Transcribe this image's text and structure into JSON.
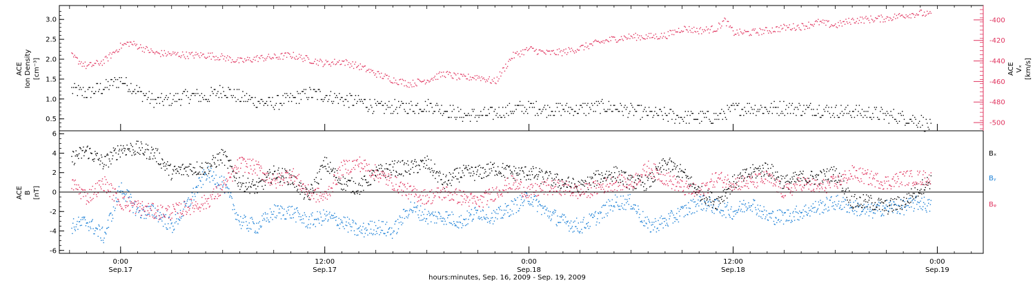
{
  "colors": {
    "black": "#000000",
    "blue": "#1a7fd6",
    "red": "#e0335e"
  },
  "chart_data": [
    {
      "type": "scatter",
      "ylabel_lines": [
        "ACE",
        "Ion Density"
      ],
      "ylabel_unit": "[cm⁻³]",
      "ylim": [
        0.2,
        3.35
      ],
      "yticks": [
        0.5,
        1.0,
        1.5,
        2.0,
        2.5,
        3.0
      ],
      "ytick_labels": [
        "0.5",
        "1.0",
        "1.5",
        "2.0",
        "2.5",
        "3.0"
      ],
      "y2label_lines": [
        "ACE",
        "Vₓ"
      ],
      "y2label_unit": "[km/s]",
      "y2lim": [
        -508,
        -386
      ],
      "y2ticks": [
        -500,
        -480,
        -460,
        -440,
        -420,
        -400
      ],
      "y2tick_labels": [
        "-500",
        "-480",
        "-460",
        "-440",
        "-420",
        "-400"
      ],
      "series": [
        {
          "color": "black",
          "axis": "left",
          "x_hours": [
            -2.9,
            -2,
            -1,
            0,
            1,
            2,
            3,
            4,
            5,
            6,
            7,
            8,
            9,
            10,
            11,
            12,
            13,
            14,
            15,
            16,
            17,
            18,
            19,
            20,
            21,
            22,
            23,
            24,
            25,
            26,
            27,
            28,
            29,
            30,
            31,
            32,
            33,
            34,
            35,
            36,
            37,
            38,
            39,
            40,
            41,
            42,
            43,
            44,
            45,
            46,
            47,
            47.6
          ],
          "values": [
            1.25,
            1.15,
            1.3,
            1.5,
            1.2,
            0.95,
            1.0,
            1.1,
            1.05,
            1.25,
            1.05,
            0.95,
            0.9,
            1.0,
            1.15,
            1.1,
            1.0,
            0.95,
            0.8,
            0.8,
            0.8,
            0.85,
            0.75,
            0.6,
            0.6,
            0.65,
            0.75,
            0.8,
            0.75,
            0.75,
            0.75,
            0.8,
            0.8,
            0.7,
            0.65,
            0.6,
            0.55,
            0.55,
            0.55,
            0.75,
            0.8,
            0.75,
            0.8,
            0.75,
            0.75,
            0.7,
            0.7,
            0.65,
            0.6,
            0.55,
            0.45,
            0.3
          ]
        },
        {
          "color": "red",
          "axis": "right",
          "x_hours": [
            -2.9,
            -2,
            -1,
            0,
            0.5,
            1,
            2,
            3,
            4,
            5,
            6,
            7,
            8,
            9,
            10,
            11,
            12,
            13,
            14,
            15,
            16,
            17,
            18,
            19,
            20,
            21,
            22,
            23,
            24,
            25,
            26,
            27,
            28,
            29,
            30,
            31,
            32,
            33,
            34,
            35,
            35.5,
            36,
            37,
            38,
            39,
            40,
            41,
            42,
            43,
            44,
            45,
            46,
            47,
            47.6
          ],
          "values": [
            -435,
            -445,
            -440,
            -425,
            -422,
            -425,
            -432,
            -433,
            -434,
            -434,
            -436,
            -440,
            -437,
            -436,
            -434,
            -438,
            -442,
            -440,
            -445,
            -452,
            -458,
            -462,
            -458,
            -452,
            -456,
            -455,
            -460,
            -435,
            -428,
            -432,
            -431,
            -427,
            -422,
            -418,
            -416,
            -416,
            -415,
            -408,
            -410,
            -408,
            -400,
            -412,
            -412,
            -410,
            -407,
            -406,
            -402,
            -405,
            -400,
            -399,
            -398,
            -395,
            -393,
            -395
          ]
        }
      ]
    },
    {
      "type": "scatter",
      "ylabel_lines": [
        "ACE",
        "B"
      ],
      "ylabel_unit": "[nT]",
      "ylim": [
        -6.3,
        6.3
      ],
      "yticks": [
        -6,
        -4,
        -2,
        0,
        2,
        4,
        6
      ],
      "ytick_labels": [
        "-6",
        "-4",
        "-2",
        "0",
        "2",
        "4",
        "6"
      ],
      "zero_line": true,
      "legend_position": "right",
      "series": [
        {
          "name": "Bₓ",
          "color": "black",
          "x_hours": [
            -2.9,
            -2,
            -1,
            0,
            1,
            2,
            3,
            4,
            5,
            6,
            7,
            8,
            9,
            10,
            11,
            12,
            13,
            14,
            15,
            16,
            17,
            18,
            19,
            20,
            21,
            22,
            23,
            24,
            25,
            26,
            27,
            28,
            29,
            30,
            31,
            32,
            33,
            34,
            35,
            36,
            37,
            38,
            39,
            40,
            41,
            42,
            43,
            44,
            45,
            46,
            47,
            47.6
          ],
          "values": [
            3.5,
            4.3,
            3.0,
            4.5,
            4.5,
            4.0,
            2.0,
            2.5,
            2.5,
            3.8,
            1.0,
            0.5,
            2.0,
            1.5,
            -0.5,
            3.0,
            1.0,
            0.5,
            2.0,
            2.5,
            2.5,
            3.0,
            1.0,
            2.0,
            2.0,
            2.5,
            2.0,
            2.0,
            1.5,
            1.0,
            0.5,
            1.5,
            2.0,
            1.0,
            1.0,
            3.0,
            2.0,
            0.0,
            -1.0,
            1.0,
            2.0,
            2.5,
            1.0,
            1.5,
            1.5,
            2.0,
            -1.0,
            -1.0,
            -1.5,
            -1.0,
            0.5,
            1.2
          ]
        },
        {
          "name": "Bᵧ",
          "color": "blue",
          "x_hours": [
            -2.9,
            -2,
            -1,
            0,
            1,
            2,
            3,
            4,
            5,
            6,
            7,
            8,
            9,
            10,
            11,
            12,
            13,
            14,
            15,
            16,
            17,
            18,
            19,
            20,
            21,
            22,
            23,
            24,
            25,
            26,
            27,
            28,
            29,
            30,
            31,
            32,
            33,
            34,
            35,
            36,
            37,
            38,
            39,
            40,
            41,
            42,
            43,
            44,
            45,
            46,
            47,
            47.6
          ],
          "values": [
            -3.5,
            -3.0,
            -4.5,
            0.5,
            -2.0,
            -2.0,
            -3.5,
            -1.0,
            2.0,
            1.0,
            -3.0,
            -3.5,
            -2.0,
            -2.0,
            -3.0,
            -2.5,
            -3.0,
            -4.0,
            -3.5,
            -4.0,
            -1.5,
            -2.5,
            -2.5,
            -3.0,
            -2.0,
            -2.5,
            -1.5,
            -0.5,
            -2.0,
            -3.0,
            -3.5,
            -2.5,
            -1.0,
            -1.0,
            -3.5,
            -3.0,
            -2.0,
            -1.0,
            -1.5,
            -2.0,
            -1.0,
            -2.5,
            -2.5,
            -2.0,
            -1.5,
            -1.0,
            -1.5,
            -2.0,
            -1.5,
            -1.5,
            -1.0,
            -1.5
          ]
        },
        {
          "name": "Bᵩ",
          "color": "red",
          "x_hours": [
            -2.9,
            -2,
            -1,
            0,
            1,
            2,
            3,
            4,
            5,
            6,
            7,
            8,
            9,
            10,
            11,
            12,
            13,
            14,
            15,
            16,
            17,
            18,
            19,
            20,
            21,
            22,
            23,
            24,
            25,
            26,
            27,
            28,
            29,
            30,
            31,
            32,
            33,
            34,
            35,
            36,
            37,
            38,
            39,
            40,
            41,
            42,
            43,
            44,
            45,
            46,
            47,
            47.6
          ],
          "values": [
            1.0,
            -0.5,
            1.0,
            -1.0,
            -1.5,
            -2.0,
            -2.0,
            -1.5,
            -1.0,
            0.5,
            3.0,
            2.5,
            1.0,
            2.0,
            0.0,
            -0.5,
            2.5,
            3.0,
            2.0,
            1.0,
            0.0,
            -0.5,
            0.0,
            -0.5,
            -1.0,
            0.0,
            1.0,
            0.0,
            0.5,
            0.5,
            0.0,
            0.5,
            1.0,
            1.0,
            2.5,
            1.5,
            0.5,
            0.0,
            1.5,
            1.0,
            1.0,
            1.5,
            0.0,
            1.0,
            0.5,
            1.0,
            2.0,
            1.5,
            1.0,
            1.5,
            1.5,
            1.5
          ]
        }
      ]
    }
  ],
  "x_axis": {
    "xlim_hours": [
      -3.6,
      50.7
    ],
    "ticks": [
      {
        "hours": 0,
        "time": "0:00",
        "date": "Sep.17"
      },
      {
        "hours": 12,
        "time": "12:00",
        "date": "Sep.17"
      },
      {
        "hours": 24,
        "time": "0:00",
        "date": "Sep.18"
      },
      {
        "hours": 36,
        "time": "12:00",
        "date": "Sep.18"
      },
      {
        "hours": 48,
        "time": "0:00",
        "date": "Sep.19"
      }
    ],
    "xlabel": "hours:minutes, Sep. 16, 2009 - Sep. 19, 2009"
  }
}
